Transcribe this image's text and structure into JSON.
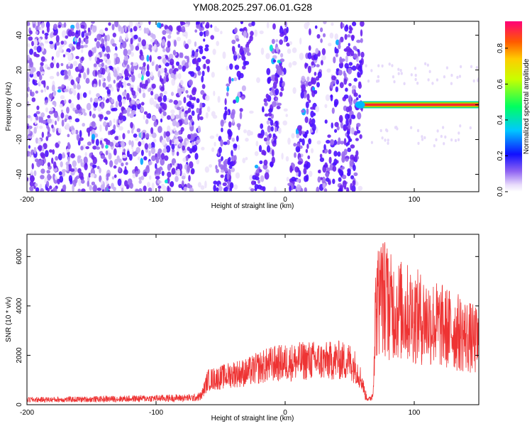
{
  "title": "YM08.2025.297.06.01.G28",
  "chart_data": [
    {
      "type": "heatmap",
      "xlabel": "Height of straight line (km)",
      "ylabel": "Frequency (Hz)",
      "xlim": [
        -200,
        150
      ],
      "ylim": [
        -50,
        48
      ],
      "xticks": [
        -200,
        -100,
        0,
        100
      ],
      "yticks": [
        -40,
        -20,
        0,
        20,
        40
      ],
      "colorbar": {
        "label": "Normalized spectral amplitude",
        "range": [
          0,
          0.95
        ],
        "ticks": [
          "0.0",
          "0.2",
          "0.4",
          "0.6",
          "0.8"
        ],
        "colormap": "rainbow"
      },
      "features": {
        "scatter_band_x": [
          -200,
          60
        ],
        "diagonal_stripes_center_x": [
          -70,
          -40,
          -10,
          18,
          40,
          55
        ],
        "strong_line": {
          "x": [
            58,
            150
          ],
          "freq": 0,
          "amplitude": 0.9
        }
      }
    },
    {
      "type": "line",
      "xlabel": "Height of straight line (km)",
      "ylabel": "SNR (10 * v/v)",
      "xlim": [
        -200,
        150
      ],
      "ylim": [
        0,
        6900
      ],
      "xticks": [
        -200,
        -100,
        0,
        100
      ],
      "yticks": [
        0,
        2000,
        4000,
        6000
      ],
      "series": [
        {
          "color": "#ee3333",
          "x": [
            -200,
            -150,
            -100,
            -70,
            -65,
            -60,
            -50,
            -40,
            -30,
            -20,
            -10,
            0,
            10,
            20,
            30,
            40,
            50,
            55,
            60,
            62,
            65,
            68,
            70,
            72,
            75,
            80,
            90,
            100,
            110,
            120,
            130,
            140,
            150
          ],
          "y": [
            200,
            220,
            260,
            280,
            350,
            1000,
            1100,
            1250,
            1300,
            1500,
            1650,
            1700,
            1750,
            1800,
            1750,
            1800,
            1750,
            1500,
            900,
            400,
            200,
            400,
            3800,
            4200,
            4500,
            4000,
            3800,
            3600,
            3400,
            3200,
            3000,
            2800,
            2500
          ]
        }
      ]
    }
  ]
}
